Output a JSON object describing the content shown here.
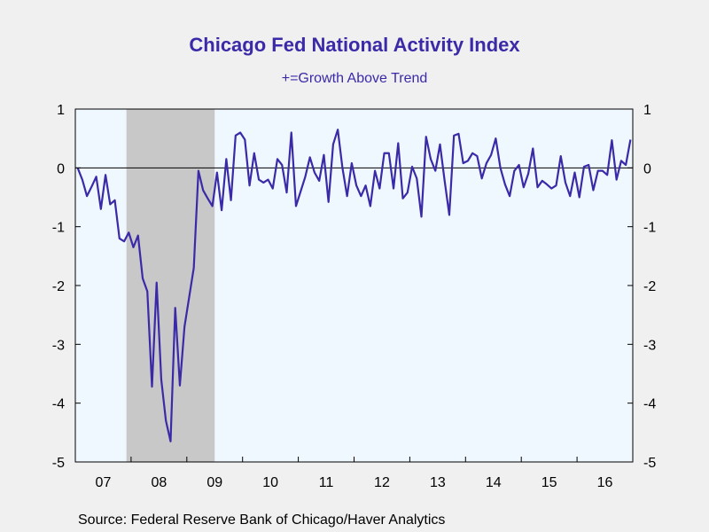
{
  "title": "Chicago Fed National Activity Index",
  "subtitle": "+=Growth Above Trend",
  "source": "Source:  Federal Reserve Bank of Chicago/Haver Analytics",
  "colors": {
    "line": "#3a2aa8",
    "plot_bg": "#f0f8ff",
    "recession": "#c8c8c8",
    "title": "#3a2aa8"
  },
  "chart_data": {
    "type": "line",
    "title": "Chicago Fed National Activity Index",
    "subtitle": "+=Growth Above Trend",
    "xlabel": "",
    "ylabel": "",
    "x_start": "2007-01",
    "x_end": "2016-12",
    "x_ticks": [
      "07",
      "08",
      "09",
      "10",
      "11",
      "12",
      "13",
      "14",
      "15",
      "16"
    ],
    "y_ticks": [
      "1",
      "0",
      "-1",
      "-2",
      "-3",
      "-4",
      "-5"
    ],
    "y_tick_values": [
      1,
      0,
      -1,
      -2,
      -3,
      -4,
      -5
    ],
    "ylim": [
      -5,
      1
    ],
    "zero_line": true,
    "grid": false,
    "shaded_period": {
      "start": "2007-12",
      "end": "2009-06",
      "label": "recession"
    },
    "series": [
      {
        "values": [
          0.0,
          -0.2,
          -0.48,
          -0.32,
          -0.15,
          -0.7,
          -0.12,
          -0.62,
          -0.55,
          -1.2,
          -1.25,
          -1.1,
          -1.35,
          -1.15,
          -1.88,
          -2.1,
          -3.72,
          -1.95,
          -3.6,
          -4.3,
          -4.65,
          -2.38,
          -3.7,
          -2.7,
          -2.2,
          -1.7,
          -0.05,
          -0.38,
          -0.52,
          -0.65,
          -0.08,
          -0.72,
          0.15,
          -0.55,
          0.55,
          0.6,
          0.48,
          -0.3,
          0.25,
          -0.2,
          -0.25,
          -0.2,
          -0.35,
          0.15,
          0.05,
          -0.42,
          0.6,
          -0.65,
          -0.4,
          -0.15,
          0.18,
          -0.08,
          -0.22,
          0.22,
          -0.58,
          0.4,
          0.65,
          0.0,
          -0.48,
          0.08,
          -0.3,
          -0.48,
          -0.3,
          -0.65,
          -0.05,
          -0.35,
          0.25,
          0.25,
          -0.35,
          0.42,
          -0.52,
          -0.42,
          0.02,
          -0.18,
          -0.83,
          0.53,
          0.15,
          -0.05,
          0.4,
          -0.22,
          -0.8,
          0.55,
          0.58,
          0.08,
          0.12,
          0.25,
          0.2,
          -0.18,
          0.08,
          0.22,
          0.5,
          0.0,
          -0.28,
          -0.48,
          -0.05,
          0.05,
          -0.33,
          -0.1,
          0.33,
          -0.33,
          -0.22,
          -0.28,
          -0.35,
          -0.3,
          0.2,
          -0.25,
          -0.48,
          -0.08,
          -0.5,
          0.02,
          0.05,
          -0.38,
          -0.05,
          -0.05,
          -0.12,
          0.47,
          -0.2,
          0.12,
          0.05,
          0.48
        ]
      }
    ]
  }
}
